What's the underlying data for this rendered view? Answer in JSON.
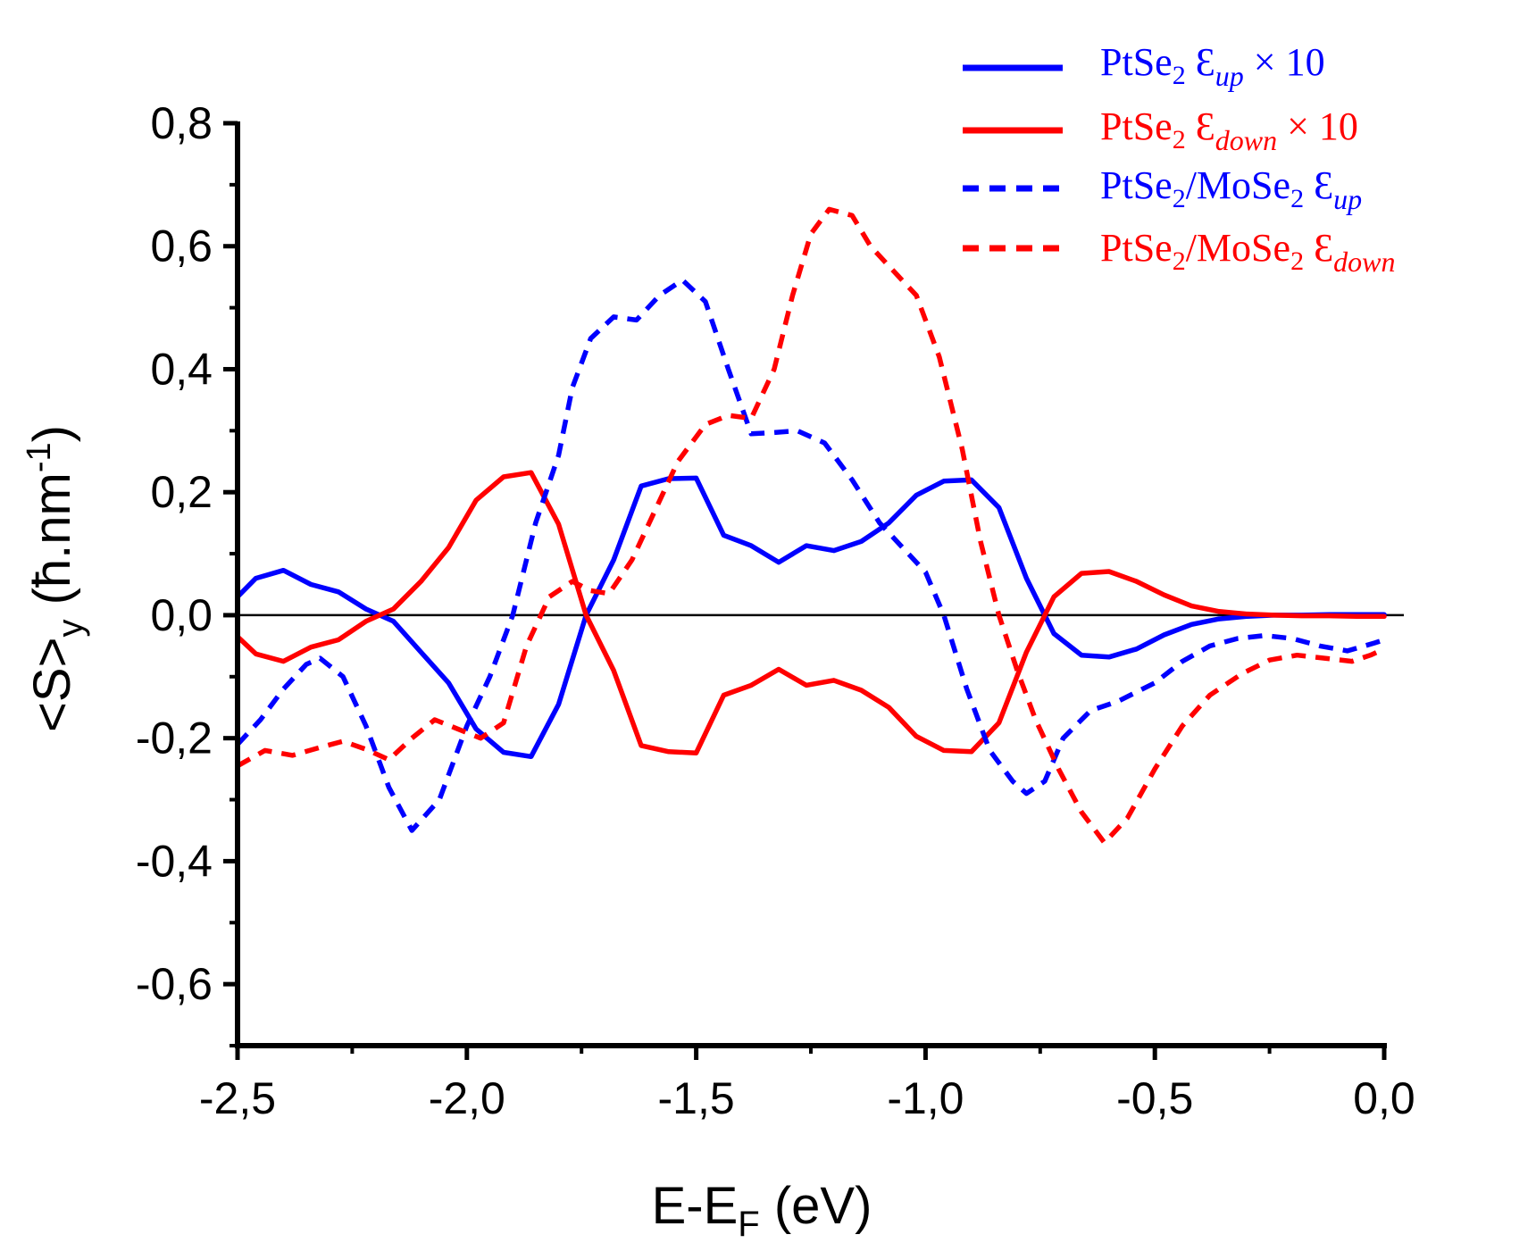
{
  "chart_data": {
    "type": "line",
    "xlabel": "E-E_F (eV)",
    "xlabel_main": "E-E",
    "xlabel_sub": "F",
    "xlabel_tail": " (eV)",
    "ylabel": "<S>_y (ħ.nm^-1)",
    "ylabel_main": "<S>",
    "ylabel_sub": "y",
    "ylabel_mid": " (ħ.nm",
    "ylabel_sup": "-1",
    "ylabel_end": ")",
    "xlim": [
      -2.5,
      0.0
    ],
    "ylim": [
      -0.7,
      0.8
    ],
    "xticks": [
      -2.5,
      -2.0,
      -1.5,
      -1.0,
      -0.5,
      0.0
    ],
    "xtick_labels": [
      "-2,5",
      "-2,0",
      "-1,5",
      "-1,0",
      "-0,5",
      "0,0"
    ],
    "yticks": [
      -0.6,
      -0.4,
      -0.2,
      0.0,
      0.2,
      0.4,
      0.6,
      0.8
    ],
    "ytick_labels": [
      "-0,6",
      "-0,4",
      "-0,2",
      "0,0",
      "0,2",
      "0,4",
      "0,6",
      "0,8"
    ],
    "zero_line": true,
    "legend_position": "top-right",
    "series": [
      {
        "name": "PtSe₂ Ɛup × 10",
        "legend_parts": {
          "base": "PtSe",
          "sub": "2",
          "eps": " Ɛ",
          "eps_sub": "up",
          "suffix": "  × 10"
        },
        "color": "#0000ff",
        "style": "solid",
        "x": [
          -2.5,
          -2.46,
          -2.4,
          -2.34,
          -2.28,
          -2.22,
          -2.16,
          -2.1,
          -2.04,
          -1.98,
          -1.92,
          -1.86,
          -1.8,
          -1.74,
          -1.68,
          -1.62,
          -1.56,
          -1.5,
          -1.44,
          -1.38,
          -1.32,
          -1.26,
          -1.2,
          -1.14,
          -1.08,
          -1.02,
          -0.96,
          -0.9,
          -0.84,
          -0.78,
          -0.72,
          -0.66,
          -0.6,
          -0.54,
          -0.48,
          -0.42,
          -0.36,
          -0.3,
          -0.24,
          -0.18,
          -0.12,
          -0.06,
          0.0
        ],
        "y": [
          0.03,
          0.06,
          0.073,
          0.05,
          0.038,
          0.01,
          -0.01,
          -0.06,
          -0.11,
          -0.185,
          -0.223,
          -0.23,
          -0.145,
          0.0,
          0.09,
          0.21,
          0.222,
          0.223,
          0.13,
          0.113,
          0.086,
          0.113,
          0.105,
          0.12,
          0.15,
          0.195,
          0.218,
          0.22,
          0.175,
          0.06,
          -0.03,
          -0.065,
          -0.068,
          -0.055,
          -0.032,
          -0.015,
          -0.006,
          -0.002,
          0.0,
          0.0,
          0.001,
          0.001,
          0.001
        ]
      },
      {
        "name": "PtSe₂ Ɛdown × 10",
        "legend_parts": {
          "base": "PtSe",
          "sub": "2",
          "eps": " Ɛ",
          "eps_sub": "down",
          "suffix": "  × 10"
        },
        "color": "#ff0000",
        "style": "solid",
        "x": [
          -2.5,
          -2.46,
          -2.4,
          -2.34,
          -2.28,
          -2.22,
          -2.16,
          -2.1,
          -2.04,
          -1.98,
          -1.92,
          -1.86,
          -1.8,
          -1.74,
          -1.68,
          -1.62,
          -1.56,
          -1.5,
          -1.44,
          -1.38,
          -1.32,
          -1.26,
          -1.2,
          -1.14,
          -1.08,
          -1.02,
          -0.96,
          -0.9,
          -0.84,
          -0.78,
          -0.72,
          -0.66,
          -0.6,
          -0.54,
          -0.48,
          -0.42,
          -0.36,
          -0.3,
          -0.24,
          -0.18,
          -0.12,
          -0.06,
          0.0
        ],
        "y": [
          -0.035,
          -0.063,
          -0.075,
          -0.052,
          -0.04,
          -0.01,
          0.01,
          0.055,
          0.11,
          0.187,
          0.225,
          0.232,
          0.148,
          0.0,
          -0.09,
          -0.212,
          -0.222,
          -0.224,
          -0.13,
          -0.114,
          -0.088,
          -0.114,
          -0.106,
          -0.122,
          -0.15,
          -0.197,
          -0.22,
          -0.222,
          -0.175,
          -0.06,
          0.03,
          0.068,
          0.071,
          0.055,
          0.033,
          0.015,
          0.006,
          0.002,
          0.0,
          -0.001,
          -0.001,
          -0.002,
          -0.002
        ]
      },
      {
        "name": "PtSe₂/MoSe₂ Ɛup",
        "legend_parts": {
          "base": "PtSe",
          "sub": "2",
          "mid": "/MoSe",
          "sub2": "2",
          "eps": " Ɛ",
          "eps_sub": "up"
        },
        "color": "#0000ff",
        "style": "dashed",
        "x": [
          -2.5,
          -2.45,
          -2.4,
          -2.35,
          -2.32,
          -2.27,
          -2.22,
          -2.17,
          -2.12,
          -2.06,
          -2.0,
          -1.95,
          -1.9,
          -1.85,
          -1.8,
          -1.77,
          -1.73,
          -1.68,
          -1.63,
          -1.58,
          -1.53,
          -1.48,
          -1.43,
          -1.38,
          -1.33,
          -1.28,
          -1.22,
          -1.16,
          -1.1,
          -1.05,
          -1.0,
          -0.96,
          -0.91,
          -0.86,
          -0.81,
          -0.78,
          -0.74,
          -0.7,
          -0.64,
          -0.58,
          -0.5,
          -0.44,
          -0.38,
          -0.32,
          -0.26,
          -0.2,
          -0.14,
          -0.08,
          -0.02,
          0.0
        ],
        "y": [
          -0.21,
          -0.17,
          -0.12,
          -0.08,
          -0.07,
          -0.1,
          -0.18,
          -0.28,
          -0.35,
          -0.3,
          -0.18,
          -0.1,
          0.0,
          0.15,
          0.26,
          0.37,
          0.45,
          0.485,
          0.48,
          0.52,
          0.545,
          0.51,
          0.4,
          0.295,
          0.297,
          0.3,
          0.28,
          0.22,
          0.15,
          0.11,
          0.07,
          0.0,
          -0.12,
          -0.22,
          -0.27,
          -0.29,
          -0.27,
          -0.2,
          -0.155,
          -0.14,
          -0.11,
          -0.075,
          -0.05,
          -0.038,
          -0.033,
          -0.038,
          -0.05,
          -0.058,
          -0.045,
          -0.04
        ]
      },
      {
        "name": "PtSe₂/MoSe₂ Ɛdown",
        "legend_parts": {
          "base": "PtSe",
          "sub": "2",
          "mid": "/MoSe",
          "sub2": "2",
          "eps": " Ɛ",
          "eps_sub": "down"
        },
        "color": "#ff0000",
        "style": "dashed",
        "x": [
          -2.5,
          -2.44,
          -2.38,
          -2.32,
          -2.27,
          -2.22,
          -2.17,
          -2.12,
          -2.07,
          -2.02,
          -1.97,
          -1.92,
          -1.87,
          -1.82,
          -1.77,
          -1.73,
          -1.69,
          -1.64,
          -1.59,
          -1.54,
          -1.48,
          -1.43,
          -1.38,
          -1.33,
          -1.29,
          -1.25,
          -1.21,
          -1.16,
          -1.12,
          -1.07,
          -1.02,
          -0.97,
          -0.92,
          -0.88,
          -0.84,
          -0.8,
          -0.76,
          -0.71,
          -0.66,
          -0.61,
          -0.56,
          -0.5,
          -0.44,
          -0.38,
          -0.31,
          -0.25,
          -0.19,
          -0.13,
          -0.07,
          -0.03,
          0.0
        ],
        "y": [
          -0.245,
          -0.22,
          -0.228,
          -0.215,
          -0.205,
          -0.218,
          -0.235,
          -0.2,
          -0.17,
          -0.185,
          -0.2,
          -0.175,
          -0.05,
          0.03,
          0.055,
          0.04,
          0.035,
          0.09,
          0.17,
          0.25,
          0.31,
          0.325,
          0.32,
          0.4,
          0.52,
          0.62,
          0.66,
          0.65,
          0.6,
          0.56,
          0.52,
          0.42,
          0.27,
          0.12,
          0.0,
          -0.09,
          -0.17,
          -0.25,
          -0.32,
          -0.37,
          -0.33,
          -0.25,
          -0.18,
          -0.13,
          -0.095,
          -0.073,
          -0.065,
          -0.07,
          -0.075,
          -0.065,
          -0.055
        ]
      }
    ]
  }
}
